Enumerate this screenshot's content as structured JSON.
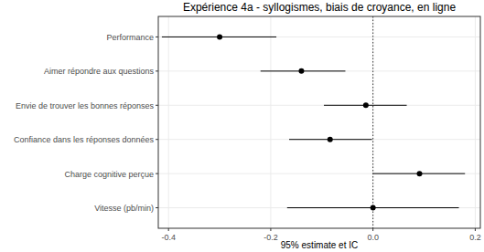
{
  "chart_data": {
    "type": "forest",
    "title": "Expérience 4a - syllogismes, biais de croyance, en ligne",
    "x_label": "95% estimate et IC",
    "orientation": "horizontal",
    "categories": [
      "Performance",
      "Aimer répondre aux questions",
      "Envie de trouver les bonnes réponses",
      "Confiance dans les réponses données",
      "Charge cognitive perçue",
      "Vitesse (pb/min)"
    ],
    "values": [
      -0.3,
      -0.14,
      -0.014,
      -0.084,
      0.091,
      0.0
    ],
    "ci_lower": [
      -0.413,
      -0.22,
      -0.096,
      -0.164,
      0.0,
      -0.168
    ],
    "ci_upper": [
      -0.189,
      -0.054,
      0.066,
      -0.002,
      0.18,
      0.168
    ],
    "ref_line": 0,
    "color": "#000000",
    "xlim": [
      -0.42,
      0.21
    ],
    "xticks": [
      -0.4,
      -0.2,
      {
        "value": 0,
        "label": "0.0"
      },
      0.2
    ],
    "grid": true
  }
}
